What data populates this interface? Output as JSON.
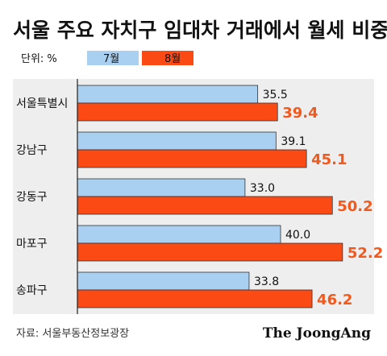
{
  "chart_data": {
    "type": "bar",
    "orientation": "horizontal",
    "title": "서울 주요 자치구 임대차 거래에서 월세 비중",
    "unit_label": "단위: %",
    "categories": [
      "서울특별시",
      "강남구",
      "강동구",
      "마포구",
      "송파구"
    ],
    "series": [
      {
        "name": "7월",
        "values": [
          35.5,
          39.1,
          33.0,
          40.0,
          33.8
        ],
        "color": "#a9d0f0"
      },
      {
        "name": "8월",
        "values": [
          39.4,
          45.1,
          50.2,
          52.2,
          46.2
        ],
        "color": "#fc4a14"
      }
    ],
    "value_labels": {
      "7월": [
        "35.5",
        "39.1",
        "33.0",
        "40.0",
        "33.8"
      ],
      "8월": [
        "39.4",
        "45.1",
        "50.2",
        "52.2",
        "46.2"
      ]
    },
    "grid": false,
    "legend_position": "top"
  },
  "footer": {
    "source": "자료: 서울부동산정보광장",
    "brand": "The JoongAng"
  },
  "colors": {
    "accent_label": "#f05a1e",
    "panel_background": "#eeeeee"
  }
}
